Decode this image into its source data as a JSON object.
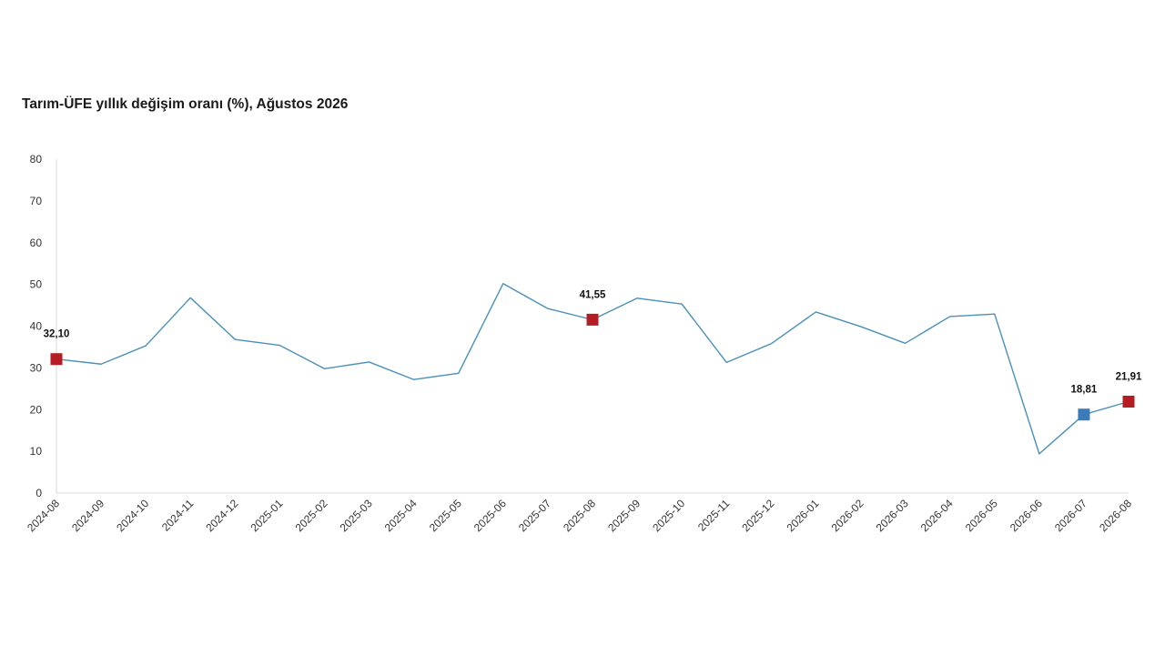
{
  "title": "Tarım-ÜFE yıllık değişim oranı (%), Ağustos 2026",
  "chart_data": {
    "type": "line",
    "title": "Tarım-ÜFE yıllık değişim oranı (%), Ağustos 2026",
    "xlabel": "",
    "ylabel": "",
    "ylim": [
      0,
      80
    ],
    "yticks": [
      "0",
      "10",
      "20",
      "30",
      "40",
      "50",
      "60",
      "70",
      "80"
    ],
    "grid": false,
    "line_color": "#4a90b8",
    "categories": [
      "2024-08",
      "2024-09",
      "2024-10",
      "2024-11",
      "2024-12",
      "2025-01",
      "2025-02",
      "2025-03",
      "2025-04",
      "2025-05",
      "2025-06",
      "2025-07",
      "2025-08",
      "2025-09",
      "2025-10",
      "2025-11",
      "2025-12",
      "2026-01",
      "2026-02",
      "2026-03",
      "2026-04",
      "2026-05",
      "2026-06",
      "2026-07",
      "2026-08"
    ],
    "series": [
      {
        "values": [
          32.1,
          30.9,
          35.3,
          46.8,
          36.8,
          35.4,
          29.8,
          31.4,
          27.2,
          28.7,
          50.2,
          44.2,
          41.55,
          46.7,
          45.3,
          31.3,
          35.8,
          43.4,
          39.9,
          35.9,
          42.3,
          42.9,
          9.4,
          18.81,
          21.91
        ]
      }
    ],
    "highlights": [
      {
        "index": 0,
        "label": "32,10",
        "color": "#b31d23"
      },
      {
        "index": 12,
        "label": "41,55",
        "color": "#b31d23"
      },
      {
        "index": 23,
        "label": "18,81",
        "color": "#3a7bb8"
      },
      {
        "index": 24,
        "label": "21,91",
        "color": "#b31d23"
      }
    ]
  }
}
